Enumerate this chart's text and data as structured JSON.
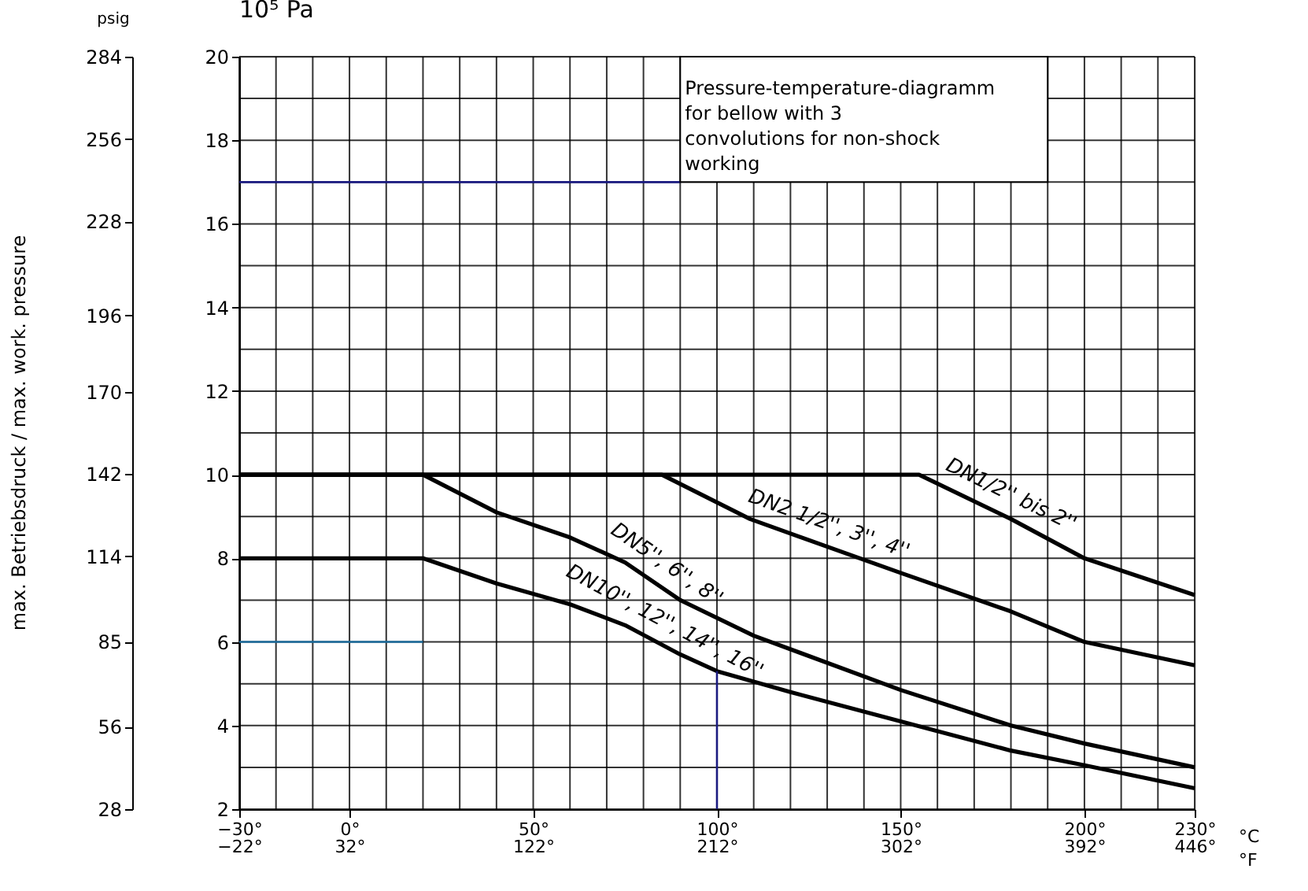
{
  "chart_data": {
    "type": "line",
    "ylabel": "10⁵ Pa",
    "y2label": "psig",
    "xlabel": "°C\n°F",
    "xlim": [
      -30,
      230
    ],
    "xticks": [
      {
        "value": -30,
        "label": "−30°"
      },
      {
        "value": -20,
        "label": null
      },
      {
        "value": -10,
        "label": null
      },
      {
        "value": 0,
        "label": "0°"
      },
      {
        "value": 10,
        "label": null
      },
      {
        "value": 20,
        "label": null
      },
      {
        "value": 30,
        "label": null
      },
      {
        "value": 40,
        "label": null
      },
      {
        "value": 50,
        "label": "50°"
      },
      {
        "value": 60,
        "label": null
      },
      {
        "value": 70,
        "label": null
      },
      {
        "value": 80,
        "label": null
      },
      {
        "value": 90,
        "label": null
      },
      {
        "value": 100,
        "label": "100°"
      },
      {
        "value": 110,
        "label": null
      },
      {
        "value": 120,
        "label": null
      },
      {
        "value": 130,
        "label": null
      },
      {
        "value": 140,
        "label": null
      },
      {
        "value": 150,
        "label": "150°"
      },
      {
        "value": 160,
        "label": null
      },
      {
        "value": 170,
        "label": null
      },
      {
        "value": 180,
        "label": null
      },
      {
        "value": 190,
        "label": null
      },
      {
        "value": 200,
        "label": "200°"
      },
      {
        "value": 210,
        "label": null
      },
      {
        "value": 220,
        "label": null
      },
      {
        "value": 230,
        "label": "230°"
      }
    ],
    "x2lim": [
      -22,
      446
    ],
    "x2ticks": [
      {
        "value": -22,
        "label": "−22°"
      },
      {
        "value": 32,
        "label": "32°"
      },
      {
        "value": 122,
        "label": "122°"
      },
      {
        "value": 212,
        "label": "212°"
      },
      {
        "value": 302,
        "label": "302°"
      },
      {
        "value": 392,
        "label": "392°"
      },
      {
        "value": 446,
        "label": "446°"
      }
    ],
    "ylim": [
      2,
      20
    ],
    "yticks": [
      2,
      {
        "value": 3,
        "label": null
      },
      4,
      {
        "value": 5,
        "label": null
      },
      6,
      {
        "value": 7,
        "label": null
      },
      8,
      {
        "value": 9,
        "label": null
      },
      10,
      {
        "value": 11,
        "label": null
      },
      12,
      {
        "value": 13,
        "label": null
      },
      14,
      {
        "value": 15,
        "label": null
      },
      16,
      {
        "value": 17,
        "label": null
      },
      18,
      {
        "value": 19,
        "label": null
      },
      20
    ],
    "y2lim": [
      28,
      284
    ],
    "y2ticks": [
      28,
      56,
      85,
      114,
      142,
      170,
      196,
      228,
      256,
      284
    ],
    "grid": true,
    "marker": "none",
    "line_style": "solid",
    "series": [
      {
        "color": "#000000",
        "x": [
          -30,
          155,
          180,
          200,
          230
        ],
        "values": [
          10,
          10,
          8.94,
          8.0,
          7.12
        ]
      },
      {
        "color": "#000000",
        "x": [
          -30,
          85,
          109,
          150,
          180,
          200,
          230
        ],
        "values": [
          10,
          10,
          8.94,
          7.65,
          6.73,
          6.0,
          5.44
        ]
      },
      {
        "color": "#000000",
        "x": [
          -30,
          20,
          40,
          60,
          75,
          90,
          110,
          150,
          180,
          200,
          230
        ],
        "values": [
          10,
          10,
          9.1,
          8.5,
          7.9,
          7.0,
          6.15,
          4.85,
          4.0,
          3.57,
          3.0
        ]
      },
      {
        "color": "#000000",
        "x": [
          -30,
          20,
          40,
          60,
          75,
          90,
          100,
          120,
          150,
          180,
          200,
          230
        ],
        "values": [
          8,
          8,
          7.4,
          6.9,
          6.4,
          5.7,
          5.3,
          4.8,
          4.1,
          3.4,
          3.05,
          2.5
        ]
      },
      {
        "color": "#1a1a80",
        "x": [
          -30,
          90
        ],
        "values": [
          17,
          17
        ]
      },
      {
        "color": "#1f6fa0",
        "x": [
          -30,
          20
        ],
        "values": [
          6,
          6
        ]
      },
      {
        "color": "#1a1a80",
        "x": [
          100,
          100
        ],
        "values": [
          2,
          5.3
        ]
      }
    ],
    "annotations": [
      "DN1/2'' bis 2''",
      "DN2 1/2'', 3'', 4''",
      "DN5'', 6'', 8''",
      "DN10'', 12'', 14'', 16''",
      "Pressure-temperature-diagramm\nfor bellow with 3\nconvolutions for non-shock\nworking",
      "max. Betriebsdruck / max. work. pressure"
    ]
  }
}
